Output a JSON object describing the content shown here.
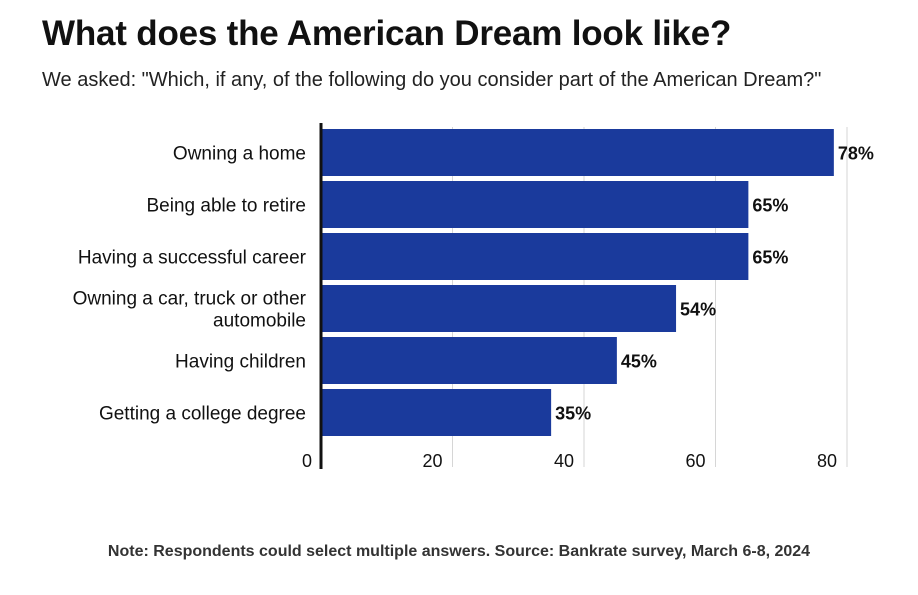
{
  "title": "What does the American Dream look like?",
  "subtitle": "We asked: \"Which, if any, of the following do you consider part of the American Dream?\"",
  "note": "Note: Respondents could select multiple answers. Source: Bankrate survey, March 6-8, 2024",
  "colors": {
    "bar": "#1a3a9c",
    "grid": "#d6d6d6",
    "axis": "#111111",
    "text": "#111111"
  },
  "chart_data": {
    "type": "bar",
    "orientation": "horizontal",
    "categories": [
      "Owning a home",
      "Being able to retire",
      "Having a successful career",
      "Owning a car, truck or other automobile",
      "Having children",
      "Getting a college degree"
    ],
    "category_lines": [
      [
        "Owning a home"
      ],
      [
        "Being able to retire"
      ],
      [
        "Having a successful career"
      ],
      [
        "Owning a car, truck or other",
        "automobile"
      ],
      [
        "Having children"
      ],
      [
        "Getting a college degree"
      ]
    ],
    "values": [
      78,
      65,
      65,
      54,
      45,
      35
    ],
    "value_labels": [
      "78%",
      "65%",
      "65%",
      "54%",
      "45%",
      "35%"
    ],
    "xlim": [
      0,
      80
    ],
    "x_ticks": [
      0,
      20,
      40,
      60,
      80
    ],
    "x_tick_labels": [
      "0",
      "20",
      "40",
      "60",
      "80"
    ],
    "grid": true,
    "legend": "none"
  }
}
